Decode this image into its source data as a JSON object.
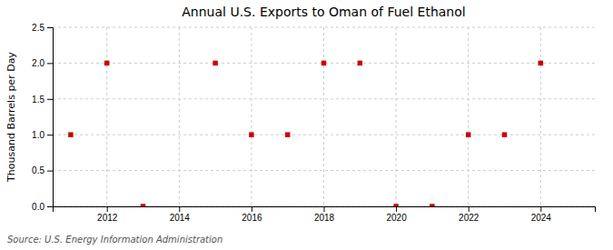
{
  "chart_data": {
    "type": "scatter",
    "title": "Annual U.S. Exports to Oman of Fuel Ethanol",
    "ylabel": "Thousand Barrels per Day",
    "annotations": [
      "Source: U.S. Energy Information Administration"
    ],
    "x": [
      2011,
      2012,
      2013,
      2015,
      2016,
      2017,
      2018,
      2019,
      2020,
      2021,
      2022,
      2023,
      2024
    ],
    "values": [
      1.0,
      2.0,
      0.0,
      2.0,
      1.0,
      1.0,
      2.0,
      2.0,
      0.0,
      0.0,
      1.0,
      1.0,
      2.0
    ],
    "color": "#cc0000",
    "marker": "square",
    "xlim": [
      2010.5,
      2025.5
    ],
    "xticks": [
      2012,
      2014,
      2016,
      2018,
      2020,
      2022,
      2024
    ],
    "ylim": [
      0.0,
      2.5
    ],
    "yticks": [
      {
        "value": 0.0,
        "label": "0.0"
      },
      0.5,
      {
        "value": 1.0,
        "label": "1.0"
      },
      1.5,
      {
        "value": 2.0,
        "label": "2.0"
      },
      2.5
    ],
    "grid": true
  }
}
